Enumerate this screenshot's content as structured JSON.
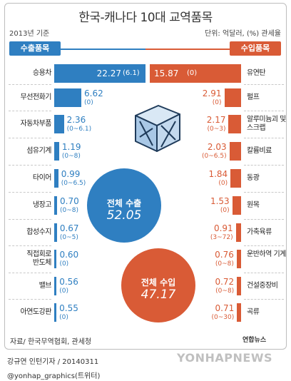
{
  "title": "한국-캐나다 10대 교역품목",
  "year_note": "2013년 기준",
  "unit_note": "단위: 억달러, (%) 관세율",
  "export_header": "수출품목",
  "import_header": "수입품목",
  "source": "자료/ 한국무역협회, 관세청",
  "credit_line1": "강규연 인턴기자 / 20140311",
  "credit_line2": "@yonhap_graphics(트위터)",
  "watermark": "YONHAPNEWS",
  "logo_text": "연합뉴스",
  "total_export_label": "전체 수출",
  "total_export_value": "52.05",
  "total_import_label": "전체 수입",
  "total_import_value": "47.17",
  "colors": {
    "export": "#2f7fc1",
    "import": "#d95b36"
  },
  "chart_data": [
    {
      "type": "bar",
      "orientation": "horizontal",
      "series_name": "수출품목",
      "categories": [
        "승용차",
        "무선전화기",
        "자동차부품",
        "섬유기계",
        "타이어",
        "냉장고",
        "합성수지",
        "직접회로 반도체",
        "밸브",
        "아연도강판"
      ],
      "values": [
        22.27,
        6.62,
        2.36,
        1.19,
        0.99,
        0.7,
        0.67,
        0.6,
        0.56,
        0.55
      ],
      "value_labels": [
        "22.27",
        "6.62",
        "2.36",
        "1.19",
        "0.99",
        "0.70",
        "0.67",
        "0.60",
        "0.56",
        "0.55"
      ],
      "tariffs": [
        "(6.1)",
        "(0)",
        "(0~6.1)",
        "(0~8)",
        "(0~6.5)",
        "(0~8)",
        "(0~5)",
        "(0)",
        "(0)",
        "(0)"
      ]
    },
    {
      "type": "bar",
      "orientation": "horizontal",
      "series_name": "수입품목",
      "categories": [
        "유연탄",
        "펄프",
        "알루미늄괴 및 스크랩",
        "칼륨비료",
        "동광",
        "원목",
        "가축육류",
        "운반하역 기계",
        "건설중장비",
        "곡류"
      ],
      "values": [
        15.87,
        2.91,
        2.17,
        2.03,
        1.84,
        1.53,
        0.91,
        0.76,
        0.72,
        0.71
      ],
      "value_labels": [
        "15.87",
        "2.91",
        "2.17",
        "2.03",
        "1.84",
        "1.53",
        "0.91",
        "0.76",
        "0.72",
        "0.71"
      ],
      "tariffs": [
        "(0)",
        "(0)",
        "(0~3)",
        "(0~6.5)",
        "(0)",
        "(0)",
        "(3~72)",
        "(0~8)",
        "(0~8)",
        "(0~30)"
      ]
    }
  ]
}
